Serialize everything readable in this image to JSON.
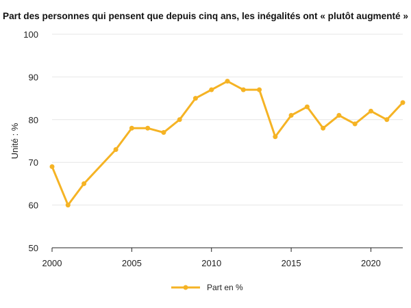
{
  "chart_data": {
    "type": "line",
    "title": "Part des personnes qui pensent que depuis cinq ans, les inégalités ont « plutôt augmenté »",
    "ylabel": "Unité : %",
    "xlabel": "",
    "ylim": [
      50,
      100
    ],
    "xlim": [
      2000,
      2022
    ],
    "yticks": [
      50,
      60,
      70,
      80,
      90,
      100
    ],
    "xticks": [
      2000,
      2005,
      2010,
      2015,
      2020
    ],
    "grid": true,
    "legend_position": "bottom",
    "color": "#F5B324",
    "series": [
      {
        "name": "Part en %",
        "x": [
          2000,
          2001,
          2002,
          2004,
          2005,
          2006,
          2007,
          2008,
          2009,
          2010,
          2011,
          2012,
          2013,
          2014,
          2015,
          2016,
          2017,
          2018,
          2019,
          2020,
          2021,
          2022
        ],
        "y": [
          69,
          60,
          65,
          73,
          78,
          78,
          77,
          80,
          85,
          87,
          89,
          87,
          87,
          76,
          81,
          83,
          78,
          81,
          79,
          82,
          80,
          84
        ]
      }
    ]
  }
}
